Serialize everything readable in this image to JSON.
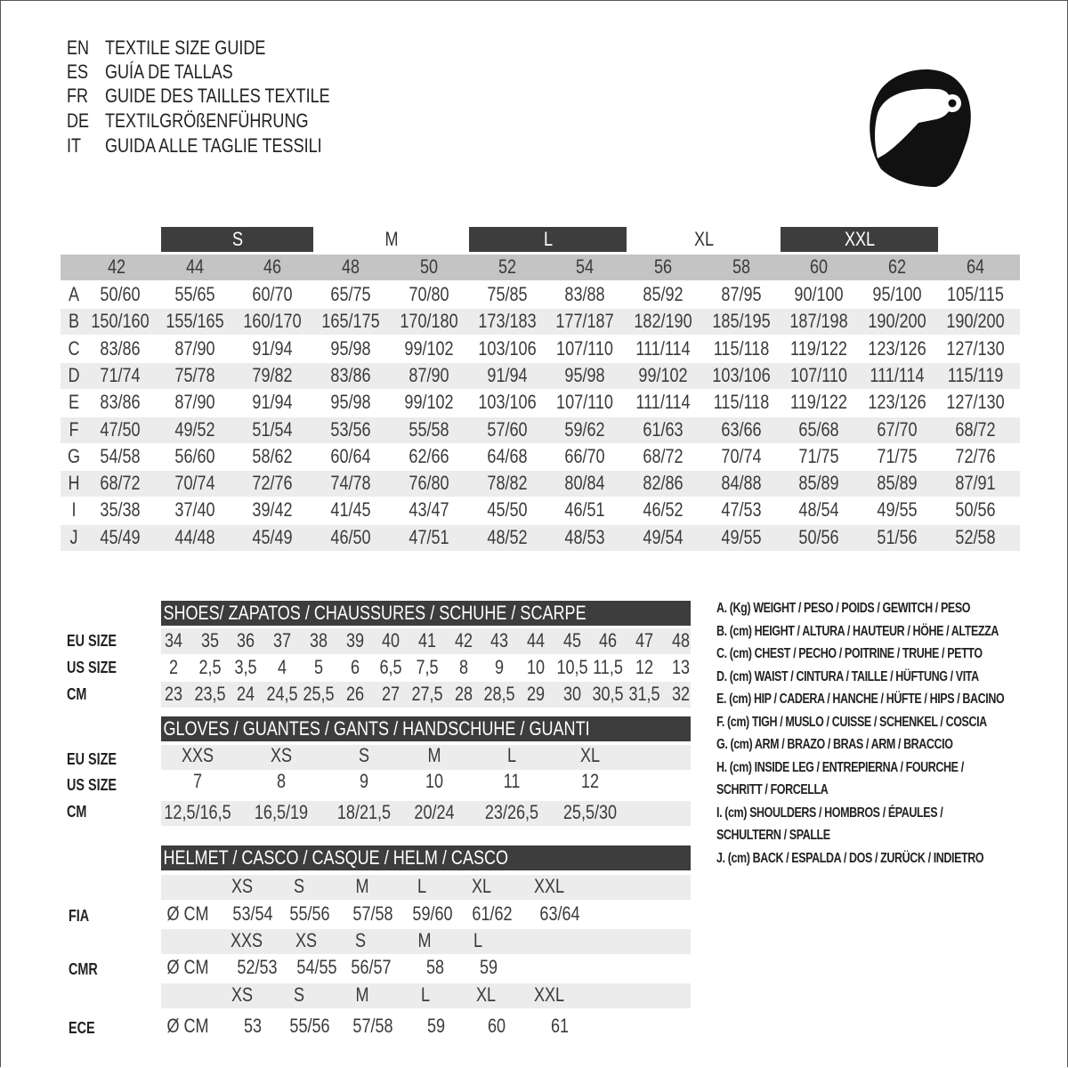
{
  "titles": [
    {
      "code": "EN",
      "text": "TEXTILE SIZE GUIDE"
    },
    {
      "code": "ES",
      "text": "GUÍA DE TALLAS"
    },
    {
      "code": "FR",
      "text": "GUIDE DES TAILLES TEXTILE"
    },
    {
      "code": "DE",
      "text": "TEXTILGRÖßENFÜHRUNG"
    },
    {
      "code": "IT",
      "text": "GUIDA ALLE TAGLIE TESSILI"
    }
  ],
  "icon": "helmet-icon",
  "colors": {
    "dark": "#3d3d3d",
    "header_grey": "#c4c4c4",
    "row_grey": "#ececec"
  },
  "textile": {
    "size_groups": [
      {
        "label": "S",
        "dark": true
      },
      {
        "label": "M",
        "dark": false
      },
      {
        "label": "L",
        "dark": true
      },
      {
        "label": "XL",
        "dark": false
      },
      {
        "label": "XXL",
        "dark": true
      }
    ],
    "sizes": [
      "42",
      "44",
      "46",
      "48",
      "50",
      "52",
      "54",
      "56",
      "58",
      "60",
      "62",
      "64"
    ],
    "rows": [
      {
        "key": "A",
        "values": [
          "50/60",
          "55/65",
          "60/70",
          "65/75",
          "70/80",
          "75/85",
          "83/88",
          "85/92",
          "87/95",
          "90/100",
          "95/100",
          "105/115"
        ]
      },
      {
        "key": "B",
        "values": [
          "150/160",
          "155/165",
          "160/170",
          "165/175",
          "170/180",
          "173/183",
          "177/187",
          "182/190",
          "185/195",
          "187/198",
          "190/200",
          "190/200"
        ]
      },
      {
        "key": "C",
        "values": [
          "83/86",
          "87/90",
          "91/94",
          "95/98",
          "99/102",
          "103/106",
          "107/110",
          "111/114",
          "115/118",
          "119/122",
          "123/126",
          "127/130"
        ]
      },
      {
        "key": "D",
        "values": [
          "71/74",
          "75/78",
          "79/82",
          "83/86",
          "87/90",
          "91/94",
          "95/98",
          "99/102",
          "103/106",
          "107/110",
          "111/114",
          "115/119"
        ]
      },
      {
        "key": "E",
        "values": [
          "83/86",
          "87/90",
          "91/94",
          "95/98",
          "99/102",
          "103/106",
          "107/110",
          "111/114",
          "115/118",
          "119/122",
          "123/126",
          "127/130"
        ]
      },
      {
        "key": "F",
        "values": [
          "47/50",
          "49/52",
          "51/54",
          "53/56",
          "55/58",
          "57/60",
          "59/62",
          "61/63",
          "63/66",
          "65/68",
          "67/70",
          "68/72"
        ]
      },
      {
        "key": "G",
        "values": [
          "54/58",
          "56/60",
          "58/62",
          "60/64",
          "62/66",
          "64/68",
          "66/70",
          "68/72",
          "70/74",
          "71/75",
          "71/75",
          "72/76"
        ]
      },
      {
        "key": "H",
        "values": [
          "68/72",
          "70/74",
          "72/76",
          "74/78",
          "76/80",
          "78/82",
          "80/84",
          "82/86",
          "84/88",
          "85/89",
          "85/89",
          "87/91"
        ]
      },
      {
        "key": "I",
        "values": [
          "35/38",
          "37/40",
          "39/42",
          "41/45",
          "43/47",
          "45/50",
          "46/51",
          "46/52",
          "47/53",
          "48/54",
          "49/55",
          "50/56"
        ]
      },
      {
        "key": "J",
        "values": [
          "45/49",
          "44/48",
          "45/49",
          "46/50",
          "47/51",
          "48/52",
          "48/53",
          "49/54",
          "49/55",
          "50/56",
          "51/56",
          "52/58"
        ]
      }
    ]
  },
  "shoes": {
    "title": "SHOES/ ZAPATOS / CHAUSSURES / SCHUHE / SCARPE",
    "rows": [
      {
        "label": "EU SIZE",
        "values": [
          "34",
          "35",
          "36",
          "37",
          "38",
          "39",
          "40",
          "41",
          "42",
          "43",
          "44",
          "45",
          "46",
          "47",
          "48"
        ]
      },
      {
        "label": "US SIZE",
        "values": [
          "2",
          "2,5",
          "3,5",
          "4",
          "5",
          "6",
          "6,5",
          "7,5",
          "8",
          "9",
          "10",
          "10,5",
          "11,5",
          "12",
          "13"
        ]
      },
      {
        "label": "CM",
        "values": [
          "23",
          "23,5",
          "24",
          "24,5",
          "25,5",
          "26",
          "27",
          "27,5",
          "28",
          "28,5",
          "29",
          "30",
          "30,5",
          "31,5",
          "32"
        ]
      }
    ]
  },
  "gloves": {
    "title": "GLOVES / GUANTES / GANTS / HANDSCHUHE / GUANTI",
    "rows": [
      {
        "label": "EU SIZE",
        "values": [
          "XXS",
          "XS",
          "S",
          "M",
          "L",
          "XL"
        ]
      },
      {
        "label": "US SIZE",
        "values": [
          "7",
          "8",
          "9",
          "10",
          "11",
          "12"
        ]
      },
      {
        "label": "CM",
        "values": [
          "12,5/16,5",
          "16,5/19",
          "18/21,5",
          "20/24",
          "23/26,5",
          "25,5/30"
        ]
      }
    ]
  },
  "helmet": {
    "title": "HELMET / CASCO / CASQUE / HELM / CASCO",
    "unit": "Ø CM",
    "standards": [
      {
        "label": "FIA",
        "sizes": [
          "XS",
          "S",
          "M",
          "L",
          "XL",
          "XXL"
        ],
        "values": [
          "53/54",
          "55/56",
          "57/58",
          "59/60",
          "61/62",
          "63/64"
        ]
      },
      {
        "label": "CMR",
        "sizes": [
          "XXS",
          "XS",
          "S",
          "M",
          "L"
        ],
        "values": [
          "52/53",
          "54/55",
          "56/57",
          "58",
          "59"
        ]
      },
      {
        "label": "ECE",
        "sizes": [
          "XS",
          "S",
          "M",
          "L",
          "XL",
          "XXL"
        ],
        "values": [
          "53",
          "55/56",
          "57/58",
          "59",
          "60",
          "61"
        ]
      }
    ]
  },
  "legend": [
    "A. (Kg) WEIGHT / PESO / POIDS / GEWITCH / PESO",
    "B. (cm) HEIGHT / ALTURA / HAUTEUR / HÖHE / ALTEZZA",
    "C. (cm) CHEST / PECHO / POITRINE / TRUHE / PETTO",
    "D. (cm) WAIST / CINTURA / TAILLE / HÜFTUNG / VITA",
    "E. (cm) HIP / CADERA / HANCHE / HÜFTE / HIPS /  BACINO",
    "F.  (cm) TIGH / MUSLO / CUISSE / SCHENKEL / COSCIA",
    "G. (cm) ARM  / BRAZO / BRAS / ARM / BRACCIO",
    "H. (cm) INSIDE LEG / ENTREPIERNA / FOURCHE /",
    "SCHRITT / FORCELLA",
    "I.  (cm) SHOULDERS / HOMBROS / ÉPAULES /",
    "SCHULTERN / SPALLE",
    "J. (cm) BACK / ESPALDA / DOS / ZURÜCK / INDIETRO"
  ]
}
